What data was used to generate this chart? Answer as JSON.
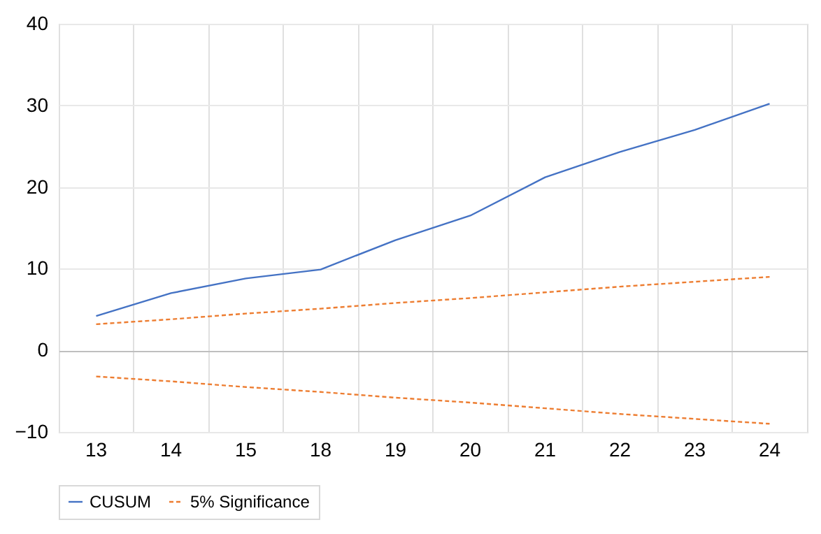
{
  "chart_data": {
    "type": "line",
    "categories": [
      "13",
      "14",
      "15",
      "18",
      "19",
      "20",
      "21",
      "22",
      "23",
      "24"
    ],
    "series": [
      {
        "name": "CUSUM",
        "color": "#4472c4",
        "line_style": "solid",
        "values": [
          4.2,
          7.0,
          8.8,
          9.9,
          13.5,
          16.5,
          21.2,
          24.3,
          27.0,
          30.2
        ]
      },
      {
        "name": "5% Significance",
        "color": "#ed7d31",
        "line_style": "dashed",
        "values": [
          3.2,
          3.8,
          4.5,
          5.1,
          5.8,
          6.4,
          7.1,
          7.8,
          8.4,
          9.0
        ]
      },
      {
        "color": "#ed7d31",
        "line_style": "dashed",
        "values": [
          -3.2,
          -3.8,
          -4.5,
          -5.1,
          -5.8,
          -6.4,
          -7.1,
          -7.8,
          -8.4,
          -9.0
        ]
      }
    ],
    "ylim": [
      -10,
      40
    ],
    "yticks": [
      -10,
      0,
      10,
      20,
      30,
      40
    ],
    "grid": true,
    "legend": "bottom",
    "marker": "none"
  }
}
